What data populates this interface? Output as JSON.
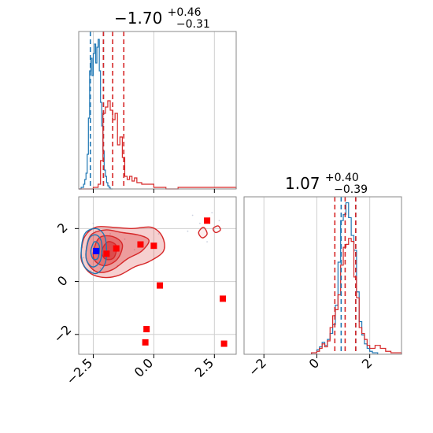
{
  "colors": {
    "blue": "#1f77b4",
    "red": "#d62728",
    "marker_red": "#ff0000",
    "marker_blue": "#0000ff",
    "fill_red": "#f08080"
  },
  "chart_data": [
    {
      "type": "histogram",
      "panel": "marginal-x",
      "title_main": "−1.70",
      "title_sup": "+0.46",
      "title_sub": "−0.31",
      "xlim": [
        -3.1,
        3.4
      ],
      "grid_x": [
        -2.5,
        0.0,
        2.5
      ],
      "series": [
        {
          "name": "",
          "color": "blue",
          "bins_x": [
            -3.1,
            -3.0,
            -2.9,
            -2.85,
            -2.8,
            -2.75,
            -2.7,
            -2.65,
            -2.6,
            -2.55,
            -2.5,
            -2.45,
            -2.4,
            -2.35,
            -2.3,
            -2.25,
            -2.2,
            -2.15,
            -2.1,
            -2.05,
            -2.0,
            -1.95,
            -1.9,
            -1.85,
            -1.8,
            -1.7
          ],
          "density": [
            0.0,
            0.01,
            0.03,
            0.06,
            0.1,
            0.22,
            0.45,
            0.75,
            0.83,
            0.72,
            0.86,
            0.92,
            0.8,
            0.9,
            0.95,
            0.75,
            0.55,
            0.4,
            0.24,
            0.12,
            0.08,
            0.04,
            0.02,
            0.01,
            0.0,
            0.0
          ]
        },
        {
          "name": "",
          "color": "red",
          "bins_x": [
            -3.1,
            -2.9,
            -2.7,
            -2.5,
            -2.3,
            -2.2,
            -2.1,
            -2.0,
            -1.9,
            -1.8,
            -1.7,
            -1.6,
            -1.5,
            -1.4,
            -1.3,
            -1.2,
            -1.1,
            -1.0,
            -0.9,
            -0.8,
            -0.7,
            -0.5,
            0.0,
            0.5,
            1.0,
            1.5,
            2.0,
            2.5,
            3.0,
            3.4
          ],
          "density": [
            0.0,
            0.0,
            0.0,
            0.01,
            0.03,
            0.18,
            0.48,
            0.52,
            0.56,
            0.5,
            0.44,
            0.48,
            0.28,
            0.33,
            0.2,
            0.08,
            0.06,
            0.08,
            0.05,
            0.07,
            0.04,
            0.03,
            0.01,
            0.0,
            0.01,
            0.01,
            0.01,
            0.01,
            0.01
          ]
        }
      ],
      "vlines_blue": [
        -2.62,
        -2.08
      ],
      "vlines_red": [
        -2.08,
        -1.7,
        -1.24
      ]
    },
    {
      "type": "scatter",
      "panel": "joint",
      "xlim": [
        -3.1,
        3.4
      ],
      "ylim": [
        -2.75,
        3.2
      ],
      "grid_x": [
        -2.5,
        0.0,
        2.5
      ],
      "grid_y": [
        -2,
        0,
        2
      ],
      "xticks": [
        -2.5,
        0.0,
        2.5
      ],
      "xtick_labels": [
        "−2.5",
        "0.0",
        "2.5"
      ],
      "yticks": [
        -2,
        0,
        2
      ],
      "ytick_labels": [
        "−2",
        "0",
        "2"
      ],
      "markers_red": [
        {
          "x": -1.95,
          "y": 1.05
        },
        {
          "x": -1.55,
          "y": 1.25
        },
        {
          "x": -0.55,
          "y": 1.4
        },
        {
          "x": 0.0,
          "y": 1.35
        },
        {
          "x": 0.25,
          "y": -0.15
        },
        {
          "x": -0.3,
          "y": -1.8
        },
        {
          "x": -0.35,
          "y": -2.3
        },
        {
          "x": 2.2,
          "y": 2.3
        },
        {
          "x": 2.85,
          "y": -0.65
        },
        {
          "x": 2.9,
          "y": -2.35
        }
      ],
      "marker_blue": {
        "x": -2.38,
        "y": 1.15
      },
      "red_contours": [
        {
          "level": "outer",
          "fill_opacity": 0.4,
          "points": [
            [
              -3.0,
              1.1
            ],
            [
              -2.85,
              1.7
            ],
            [
              -2.4,
              2.05
            ],
            [
              -1.7,
              2.05
            ],
            [
              -0.9,
              2.0
            ],
            [
              -0.1,
              2.05
            ],
            [
              0.35,
              1.7
            ],
            [
              0.4,
              1.15
            ],
            [
              -0.2,
              0.75
            ],
            [
              -0.8,
              0.55
            ],
            [
              -1.4,
              0.25
            ],
            [
              -2.0,
              0.15
            ],
            [
              -2.6,
              0.3
            ],
            [
              -2.95,
              0.7
            ]
          ]
        },
        {
          "level": "mid",
          "fill_opacity": 0.55,
          "points": [
            [
              -2.8,
              1.1
            ],
            [
              -2.6,
              1.75
            ],
            [
              -2.0,
              1.95
            ],
            [
              -1.3,
              1.85
            ],
            [
              -0.6,
              1.75
            ],
            [
              -0.2,
              1.55
            ],
            [
              -0.5,
              1.15
            ],
            [
              -1.1,
              0.85
            ],
            [
              -1.7,
              0.45
            ],
            [
              -2.3,
              0.35
            ],
            [
              -2.7,
              0.65
            ]
          ]
        },
        {
          "level": "inner",
          "fill_opacity": 0.7,
          "points": [
            [
              -2.5,
              1.1
            ],
            [
              -2.25,
              1.65
            ],
            [
              -1.7,
              1.7
            ],
            [
              -1.3,
              1.4
            ],
            [
              -1.5,
              0.85
            ],
            [
              -2.0,
              0.6
            ],
            [
              -2.4,
              0.75
            ]
          ]
        },
        {
          "level": "core",
          "fill_opacity": 0.9,
          "points": [
            [
              -2.15,
              1.15
            ],
            [
              -1.9,
              1.5
            ],
            [
              -1.55,
              1.35
            ],
            [
              -1.65,
              0.9
            ],
            [
              -2.0,
              0.85
            ]
          ]
        },
        {
          "level": "island",
          "fill_opacity": 0.15,
          "points": [
            [
              1.85,
              1.85
            ],
            [
              2.05,
              2.05
            ],
            [
              2.2,
              1.8
            ],
            [
              2.0,
              1.65
            ]
          ]
        },
        {
          "level": "island2",
          "fill_opacity": 0.0,
          "points": [
            [
              2.45,
              2.0
            ],
            [
              2.65,
              2.1
            ],
            [
              2.75,
              1.95
            ],
            [
              2.55,
              1.85
            ]
          ]
        }
      ],
      "blue_contours": [
        {
          "level": "outer",
          "points": [
            [
              -3.0,
              1.1
            ],
            [
              -2.85,
              1.8
            ],
            [
              -2.4,
              2.0
            ],
            [
              -2.05,
              1.75
            ],
            [
              -1.95,
              1.1
            ],
            [
              -2.05,
              0.6
            ],
            [
              -2.4,
              0.3
            ],
            [
              -2.85,
              0.55
            ]
          ]
        },
        {
          "level": "mid",
          "points": [
            [
              -2.8,
              1.1
            ],
            [
              -2.65,
              1.65
            ],
            [
              -2.35,
              1.75
            ],
            [
              -2.15,
              1.45
            ],
            [
              -2.2,
              0.8
            ],
            [
              -2.5,
              0.55
            ],
            [
              -2.75,
              0.75
            ]
          ]
        },
        {
          "level": "inner",
          "points": [
            [
              -2.6,
              1.15
            ],
            [
              -2.45,
              1.5
            ],
            [
              -2.25,
              1.35
            ],
            [
              -2.3,
              0.9
            ],
            [
              -2.5,
              0.85
            ]
          ]
        }
      ]
    },
    {
      "type": "histogram",
      "panel": "marginal-y",
      "title_main": "1.07",
      "title_sup": "+0.40",
      "title_sub": "−0.39",
      "xlim": [
        -2.75,
        3.2
      ],
      "grid_x": [
        -2,
        0,
        2
      ],
      "xticks": [
        -2,
        0,
        2
      ],
      "xtick_labels": [
        "−2",
        "0",
        "2"
      ],
      "series": [
        {
          "name": "",
          "color": "blue",
          "bins_x": [
            -0.2,
            0.0,
            0.1,
            0.2,
            0.3,
            0.4,
            0.5,
            0.6,
            0.7,
            0.8,
            0.9,
            1.0,
            1.1,
            1.2,
            1.3,
            1.4,
            1.5,
            1.6,
            1.7,
            1.8,
            1.9,
            2.0,
            2.1,
            2.3
          ],
          "density": [
            0.01,
            0.03,
            0.05,
            0.08,
            0.06,
            0.1,
            0.14,
            0.2,
            0.33,
            0.62,
            0.9,
            0.94,
            1.02,
            0.92,
            0.8,
            0.7,
            0.42,
            0.22,
            0.13,
            0.07,
            0.04,
            0.02,
            0.01
          ]
        },
        {
          "name": "",
          "color": "red",
          "bins_x": [
            -0.2,
            0.0,
            0.1,
            0.2,
            0.3,
            0.4,
            0.5,
            0.6,
            0.7,
            0.8,
            0.9,
            1.0,
            1.1,
            1.2,
            1.3,
            1.4,
            1.5,
            1.6,
            1.7,
            1.8,
            1.9,
            2.0,
            2.2,
            2.4,
            2.6,
            2.8,
            3.0,
            3.2
          ],
          "density": [
            0.01,
            0.02,
            0.04,
            0.07,
            0.05,
            0.09,
            0.18,
            0.26,
            0.3,
            0.4,
            0.6,
            0.72,
            0.74,
            0.78,
            0.76,
            0.52,
            0.38,
            0.18,
            0.14,
            0.1,
            0.06,
            0.04,
            0.06,
            0.04,
            0.02,
            0.01,
            0.01
          ]
        }
      ],
      "vlines_blue": [
        0.92,
        1.47
      ],
      "vlines_red": [
        0.68,
        1.07,
        1.47
      ]
    }
  ]
}
